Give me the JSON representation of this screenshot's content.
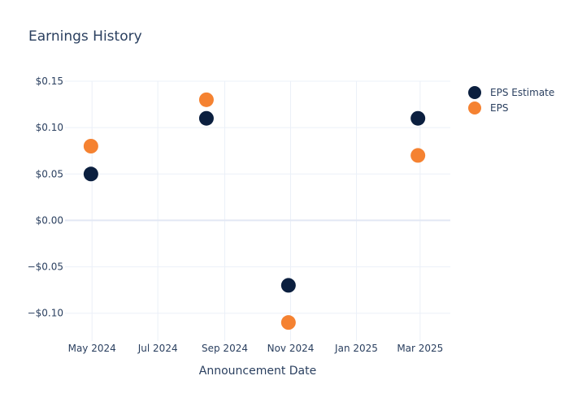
{
  "chart_data": {
    "type": "scatter",
    "title": "Earnings History",
    "xlabel": "Announcement Date",
    "ylabel": "",
    "x_tick_labels": [
      {
        "date": "2024-05-01",
        "label": "May 2024"
      },
      {
        "date": "2024-07-01",
        "label": "Jul 2024"
      },
      {
        "date": "2024-09-01",
        "label": "Sep 2024"
      },
      {
        "date": "2024-11-01",
        "label": "Nov 2024"
      },
      {
        "date": "2025-01-01",
        "label": "Jan 2025"
      },
      {
        "date": "2025-03-01",
        "label": "Mar 2025"
      }
    ],
    "xlim": [
      "2024-04-06",
      "2025-03-29"
    ],
    "y_ticks": [
      {
        "value": 0.15,
        "label": "$0.15"
      },
      {
        "value": 0.1,
        "label": "$0.10"
      },
      {
        "value": 0.05,
        "label": "$0.05"
      },
      {
        "value": 0.0,
        "label": "$0.00"
      },
      {
        "value": -0.05,
        "label": "−$0.05"
      },
      {
        "value": -0.1,
        "label": "−$0.10"
      }
    ],
    "ylim": [
      -0.13,
      0.15
    ],
    "grid": true,
    "legend_position": "top-right",
    "series": [
      {
        "name": "EPS Estimate",
        "color": "#0b1f3f",
        "points": [
          {
            "x": "2024-04-30",
            "y": 0.05
          },
          {
            "x": "2024-08-15",
            "y": 0.11
          },
          {
            "x": "2024-10-30",
            "y": -0.07
          },
          {
            "x": "2025-02-27",
            "y": 0.11
          }
        ]
      },
      {
        "name": "EPS",
        "color": "#f58231",
        "points": [
          {
            "x": "2024-04-30",
            "y": 0.08
          },
          {
            "x": "2024-08-15",
            "y": 0.13
          },
          {
            "x": "2024-10-30",
            "y": -0.11
          },
          {
            "x": "2025-02-27",
            "y": 0.07
          }
        ]
      }
    ]
  }
}
